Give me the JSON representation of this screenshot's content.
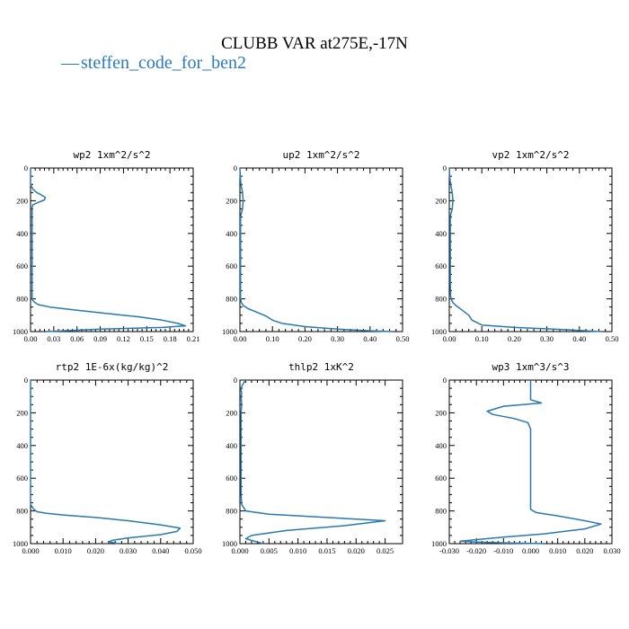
{
  "title": "CLUBB VAR at275E,-17N",
  "legend": {
    "label": "steffen_code_for_ben2",
    "marker": "—",
    "color": "#2a78b0"
  },
  "chart_data": [
    {
      "type": "line",
      "title": "wp2  1xm^2/s^2",
      "xlim": [
        0,
        0.21
      ],
      "ylim": [
        1000,
        0
      ],
      "xticks": [
        0,
        0.03,
        0.06,
        0.09,
        0.12,
        0.15,
        0.18,
        0.21
      ],
      "xtick_labels": [
        "0.00",
        "0.03",
        "0.06",
        "0.09",
        "0.12",
        "0.15",
        "0.18",
        "0.21"
      ],
      "yticks": [
        0,
        200,
        400,
        600,
        800,
        1000
      ],
      "ytick_labels": [
        "0",
        "200",
        "400",
        "600",
        "800",
        "1000"
      ],
      "series": [
        {
          "x": [
            0.0,
            0.0,
            0.0,
            0.003,
            0.008,
            0.014,
            0.019,
            0.018,
            0.01,
            0.003,
            0.002,
            0.002,
            0.002,
            0.002,
            0.002,
            0.002,
            0.002,
            0.002,
            0.003,
            0.005,
            0.01,
            0.025,
            0.06,
            0.1,
            0.14,
            0.17,
            0.19,
            0.2,
            0.17,
            0.09,
            0.02
          ],
          "y": [
            0,
            40,
            100,
            130,
            150,
            165,
            180,
            195,
            210,
            225,
            240,
            300,
            400,
            500,
            600,
            700,
            780,
            800,
            810,
            820,
            835,
            850,
            870,
            890,
            910,
            930,
            950,
            965,
            975,
            985,
            1000
          ]
        }
      ]
    },
    {
      "type": "line",
      "title": "up2  1xm^2/s^2",
      "xlim": [
        0,
        0.5
      ],
      "ylim": [
        1000,
        0
      ],
      "xticks": [
        0,
        0.1,
        0.2,
        0.3,
        0.4,
        0.5
      ],
      "xtick_labels": [
        "0.00",
        "0.10",
        "0.20",
        "0.30",
        "0.40",
        "0.50"
      ],
      "yticks": [
        0,
        200,
        400,
        600,
        800,
        1000
      ],
      "ytick_labels": [
        "0",
        "200",
        "400",
        "600",
        "800",
        "1000"
      ],
      "series": [
        {
          "x": [
            0.0,
            0.001,
            0.003,
            0.008,
            0.01,
            0.008,
            0.004,
            0.002,
            0.002,
            0.002,
            0.002,
            0.002,
            0.002,
            0.002,
            0.004,
            0.01,
            0.025,
            0.05,
            0.08,
            0.1,
            0.13,
            0.2,
            0.3,
            0.4,
            0.47
          ],
          "y": [
            0,
            50,
            100,
            150,
            200,
            250,
            280,
            300,
            400,
            500,
            600,
            700,
            780,
            800,
            820,
            840,
            860,
            880,
            905,
            930,
            950,
            970,
            985,
            995,
            1000
          ]
        }
      ]
    },
    {
      "type": "line",
      "title": "vp2  1xm^2/s^2",
      "xlim": [
        0,
        0.5
      ],
      "ylim": [
        1000,
        0
      ],
      "xticks": [
        0,
        0.1,
        0.2,
        0.3,
        0.4,
        0.5
      ],
      "xtick_labels": [
        "0.00",
        "0.10",
        "0.20",
        "0.30",
        "0.40",
        "0.50"
      ],
      "yticks": [
        0,
        200,
        400,
        600,
        800,
        1000
      ],
      "ytick_labels": [
        "0",
        "200",
        "400",
        "600",
        "800",
        "1000"
      ],
      "series": [
        {
          "x": [
            0.0,
            0.001,
            0.004,
            0.009,
            0.011,
            0.009,
            0.005,
            0.003,
            0.003,
            0.003,
            0.003,
            0.003,
            0.004,
            0.006,
            0.01,
            0.02,
            0.04,
            0.06,
            0.07,
            0.1,
            0.2,
            0.32,
            0.42,
            0.47
          ],
          "y": [
            0,
            50,
            100,
            150,
            200,
            250,
            280,
            300,
            400,
            500,
            600,
            700,
            780,
            800,
            820,
            840,
            870,
            900,
            930,
            960,
            975,
            985,
            995,
            1000
          ]
        }
      ]
    },
    {
      "type": "line",
      "title": "rtp2  1E-6x(kg/kg)^2",
      "xlim": [
        0,
        0.05
      ],
      "ylim": [
        1000,
        0
      ],
      "xticks": [
        0,
        0.01,
        0.02,
        0.03,
        0.04,
        0.05
      ],
      "xtick_labels": [
        "0.000",
        "0.010",
        "0.020",
        "0.030",
        "0.040",
        "0.050"
      ],
      "yticks": [
        0,
        200,
        400,
        600,
        800,
        1000
      ],
      "ytick_labels": [
        "0",
        "200",
        "400",
        "600",
        "800",
        "1000"
      ],
      "series": [
        {
          "x": [
            0.0,
            0.0,
            0.0,
            0.0,
            0.0,
            0.0,
            0.0,
            0.0,
            0.0,
            0.001,
            0.002,
            0.005,
            0.01,
            0.02,
            0.03,
            0.04,
            0.046,
            0.045,
            0.04,
            0.03,
            0.025,
            0.024,
            0.026,
            0.027
          ],
          "y": [
            0,
            100,
            200,
            300,
            400,
            500,
            600,
            700,
            760,
            790,
            805,
            815,
            825,
            840,
            860,
            885,
            905,
            925,
            945,
            965,
            980,
            990,
            995,
            1000
          ]
        }
      ]
    },
    {
      "type": "line",
      "title": "thlp2  1xK^2",
      "xlim": [
        0,
        0.028
      ],
      "ylim": [
        1000,
        0
      ],
      "xticks": [
        0,
        0.005,
        0.01,
        0.015,
        0.02,
        0.025
      ],
      "xtick_labels": [
        "0.000",
        "0.005",
        "0.010",
        "0.015",
        "0.020",
        "0.025"
      ],
      "yticks": [
        0,
        200,
        400,
        600,
        800,
        1000
      ],
      "ytick_labels": [
        "0",
        "200",
        "400",
        "600",
        "800",
        "1000"
      ],
      "series": [
        {
          "x": [
            0.001,
            0.0006,
            0.0003,
            0.0002,
            0.0003,
            0.0002,
            0.0003,
            0.0002,
            0.0002,
            0.0002,
            0.0002,
            0.0002,
            0.0002,
            0.0002,
            0.0003,
            0.001,
            0.005,
            0.015,
            0.025,
            0.018,
            0.008,
            0.002,
            0.001,
            0.003,
            0.004
          ],
          "y": [
            0,
            20,
            40,
            60,
            80,
            100,
            150,
            200,
            250,
            300,
            400,
            500,
            600,
            700,
            760,
            800,
            820,
            840,
            860,
            890,
            920,
            950,
            970,
            990,
            1000
          ]
        }
      ]
    },
    {
      "type": "line",
      "title": "wp3  1xm^3/s^3",
      "xlim": [
        -0.03,
        0.03
      ],
      "ylim": [
        1000,
        0
      ],
      "xticks": [
        -0.03,
        -0.02,
        -0.01,
        0,
        0.01,
        0.02,
        0.03
      ],
      "xtick_labels": [
        "-0.030",
        "-0.020",
        "-0.010",
        "0.000",
        "0.010",
        "0.020",
        "0.030"
      ],
      "yticks": [
        0,
        200,
        400,
        600,
        800,
        1000
      ],
      "ytick_labels": [
        "0",
        "200",
        "400",
        "600",
        "800",
        "1000"
      ],
      "series": [
        {
          "x": [
            0.0,
            0.0,
            0.0,
            0.004,
            -0.01,
            -0.016,
            -0.014,
            -0.006,
            -0.001,
            0.0,
            0.0,
            0.0,
            0.0,
            0.0,
            0.0,
            0.002,
            0.01,
            0.02,
            0.026,
            0.02,
            0.005,
            -0.01,
            -0.026,
            -0.02,
            -0.01,
            0.005
          ],
          "y": [
            0,
            50,
            120,
            140,
            160,
            190,
            210,
            235,
            260,
            300,
            400,
            500,
            600,
            700,
            790,
            810,
            830,
            860,
            880,
            910,
            940,
            960,
            985,
            990,
            995,
            1000
          ]
        }
      ]
    }
  ]
}
